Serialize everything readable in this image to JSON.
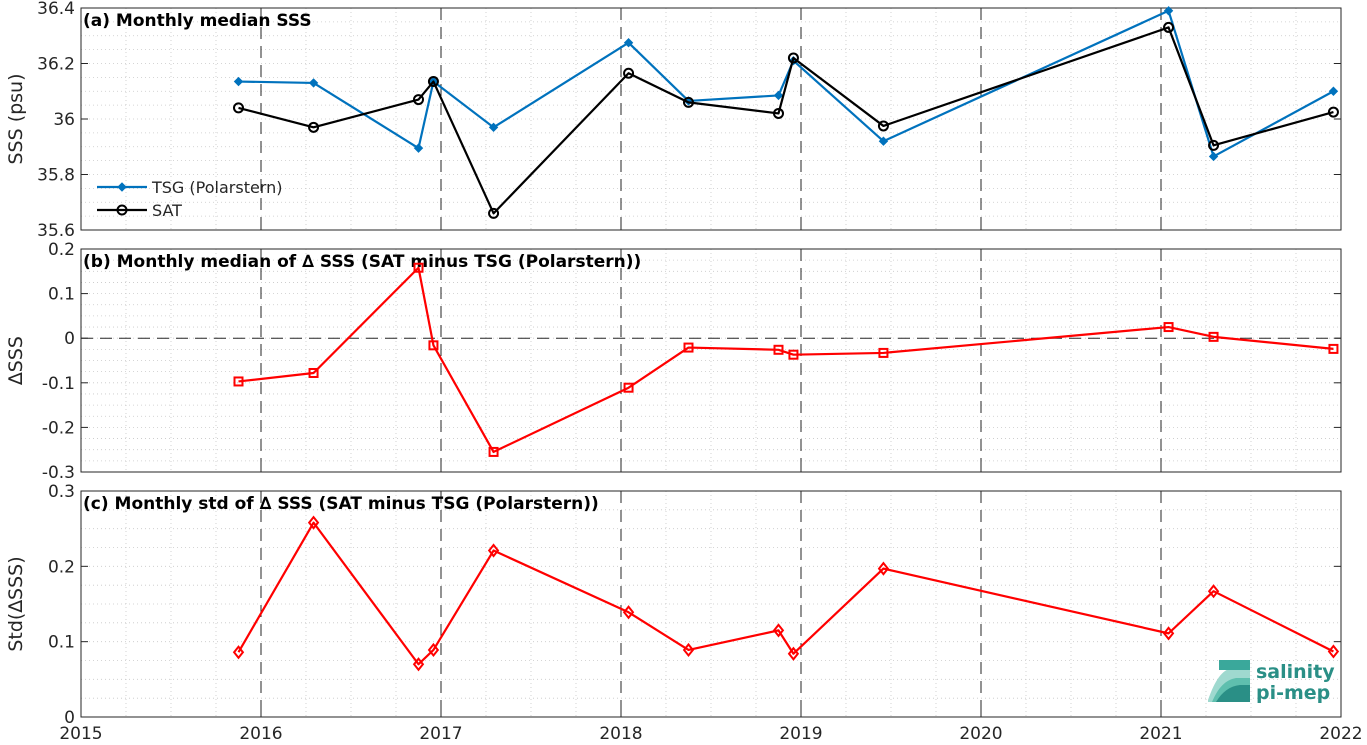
{
  "chart_data": [
    {
      "type": "line",
      "panel": "a",
      "title": "(a) Monthly median SSS",
      "ylabel": "SSS (psu)",
      "ylim": [
        35.6,
        36.4
      ],
      "yticks": [
        "35.6",
        "35.8",
        "36",
        "36.2",
        "36.4"
      ],
      "xlim": [
        2015,
        2022
      ],
      "grid": "minor dotted, major dashed at years",
      "legend_position": "lower-left",
      "series": [
        {
          "name": "TSG (Polarstern)",
          "color": "#0072BD",
          "marker": "filled-diamond",
          "x": [
            2015.875,
            2016.292,
            2016.875,
            2016.958,
            2017.292,
            2018.042,
            2018.375,
            2018.875,
            2018.958,
            2019.458,
            2021.042,
            2021.292,
            2021.958
          ],
          "y": [
            36.135,
            36.13,
            35.895,
            36.135,
            35.97,
            36.275,
            36.065,
            36.085,
            36.21,
            35.92,
            36.39,
            35.865,
            36.1
          ]
        },
        {
          "name": "SAT",
          "color": "#000000",
          "marker": "open-circle",
          "x": [
            2015.875,
            2016.292,
            2016.875,
            2016.958,
            2017.292,
            2018.042,
            2018.375,
            2018.875,
            2018.958,
            2019.458,
            2021.042,
            2021.292,
            2021.958
          ],
          "y": [
            36.04,
            35.97,
            36.07,
            36.135,
            35.66,
            36.165,
            36.06,
            36.02,
            36.22,
            35.975,
            36.33,
            35.905,
            36.025
          ]
        }
      ]
    },
    {
      "type": "line",
      "panel": "b",
      "title": "(b) Monthly median of ∆ SSS (SAT minus TSG (Polarstern))",
      "ylabel": "∆SSS",
      "ylim": [
        -0.3,
        0.2
      ],
      "yticks": [
        "-0.3",
        "-0.2",
        "-0.1",
        "0",
        "0.1",
        "0.2"
      ],
      "xlim": [
        2015,
        2022
      ],
      "zero_line": true,
      "series": [
        {
          "color": "#FF0000",
          "marker": "open-square",
          "x": [
            2015.875,
            2016.292,
            2016.875,
            2016.958,
            2017.292,
            2018.042,
            2018.375,
            2018.875,
            2018.958,
            2019.458,
            2021.042,
            2021.292,
            2021.958
          ],
          "y": [
            -0.097,
            -0.078,
            0.158,
            -0.016,
            -0.255,
            -0.111,
            -0.021,
            -0.026,
            -0.037,
            -0.033,
            0.025,
            0.003,
            -0.024
          ]
        }
      ]
    },
    {
      "type": "line",
      "panel": "c",
      "title": "(c) Monthly std of ∆ SSS (SAT minus TSG (Polarstern))",
      "ylabel": "Std(∆SSS)",
      "ylim": [
        0,
        0.3
      ],
      "yticks": [
        "0",
        "0.1",
        "0.2",
        "0.3"
      ],
      "xlim": [
        2015,
        2022
      ],
      "xticks": [
        "2015",
        "2016",
        "2017",
        "2018",
        "2019",
        "2020",
        "2021",
        "2022"
      ],
      "series": [
        {
          "color": "#FF0000",
          "marker": "open-diamond",
          "x": [
            2015.875,
            2016.292,
            2016.875,
            2016.958,
            2017.292,
            2018.042,
            2018.375,
            2018.875,
            2018.958,
            2019.458,
            2021.042,
            2021.292,
            2021.958
          ],
          "y": [
            0.086,
            0.258,
            0.07,
            0.089,
            0.221,
            0.139,
            0.089,
            0.115,
            0.084,
            0.197,
            0.111,
            0.167,
            0.087
          ]
        }
      ]
    }
  ],
  "logo": {
    "line1": "salinity",
    "line2": "pi-mep",
    "color": "#2a8f86"
  }
}
